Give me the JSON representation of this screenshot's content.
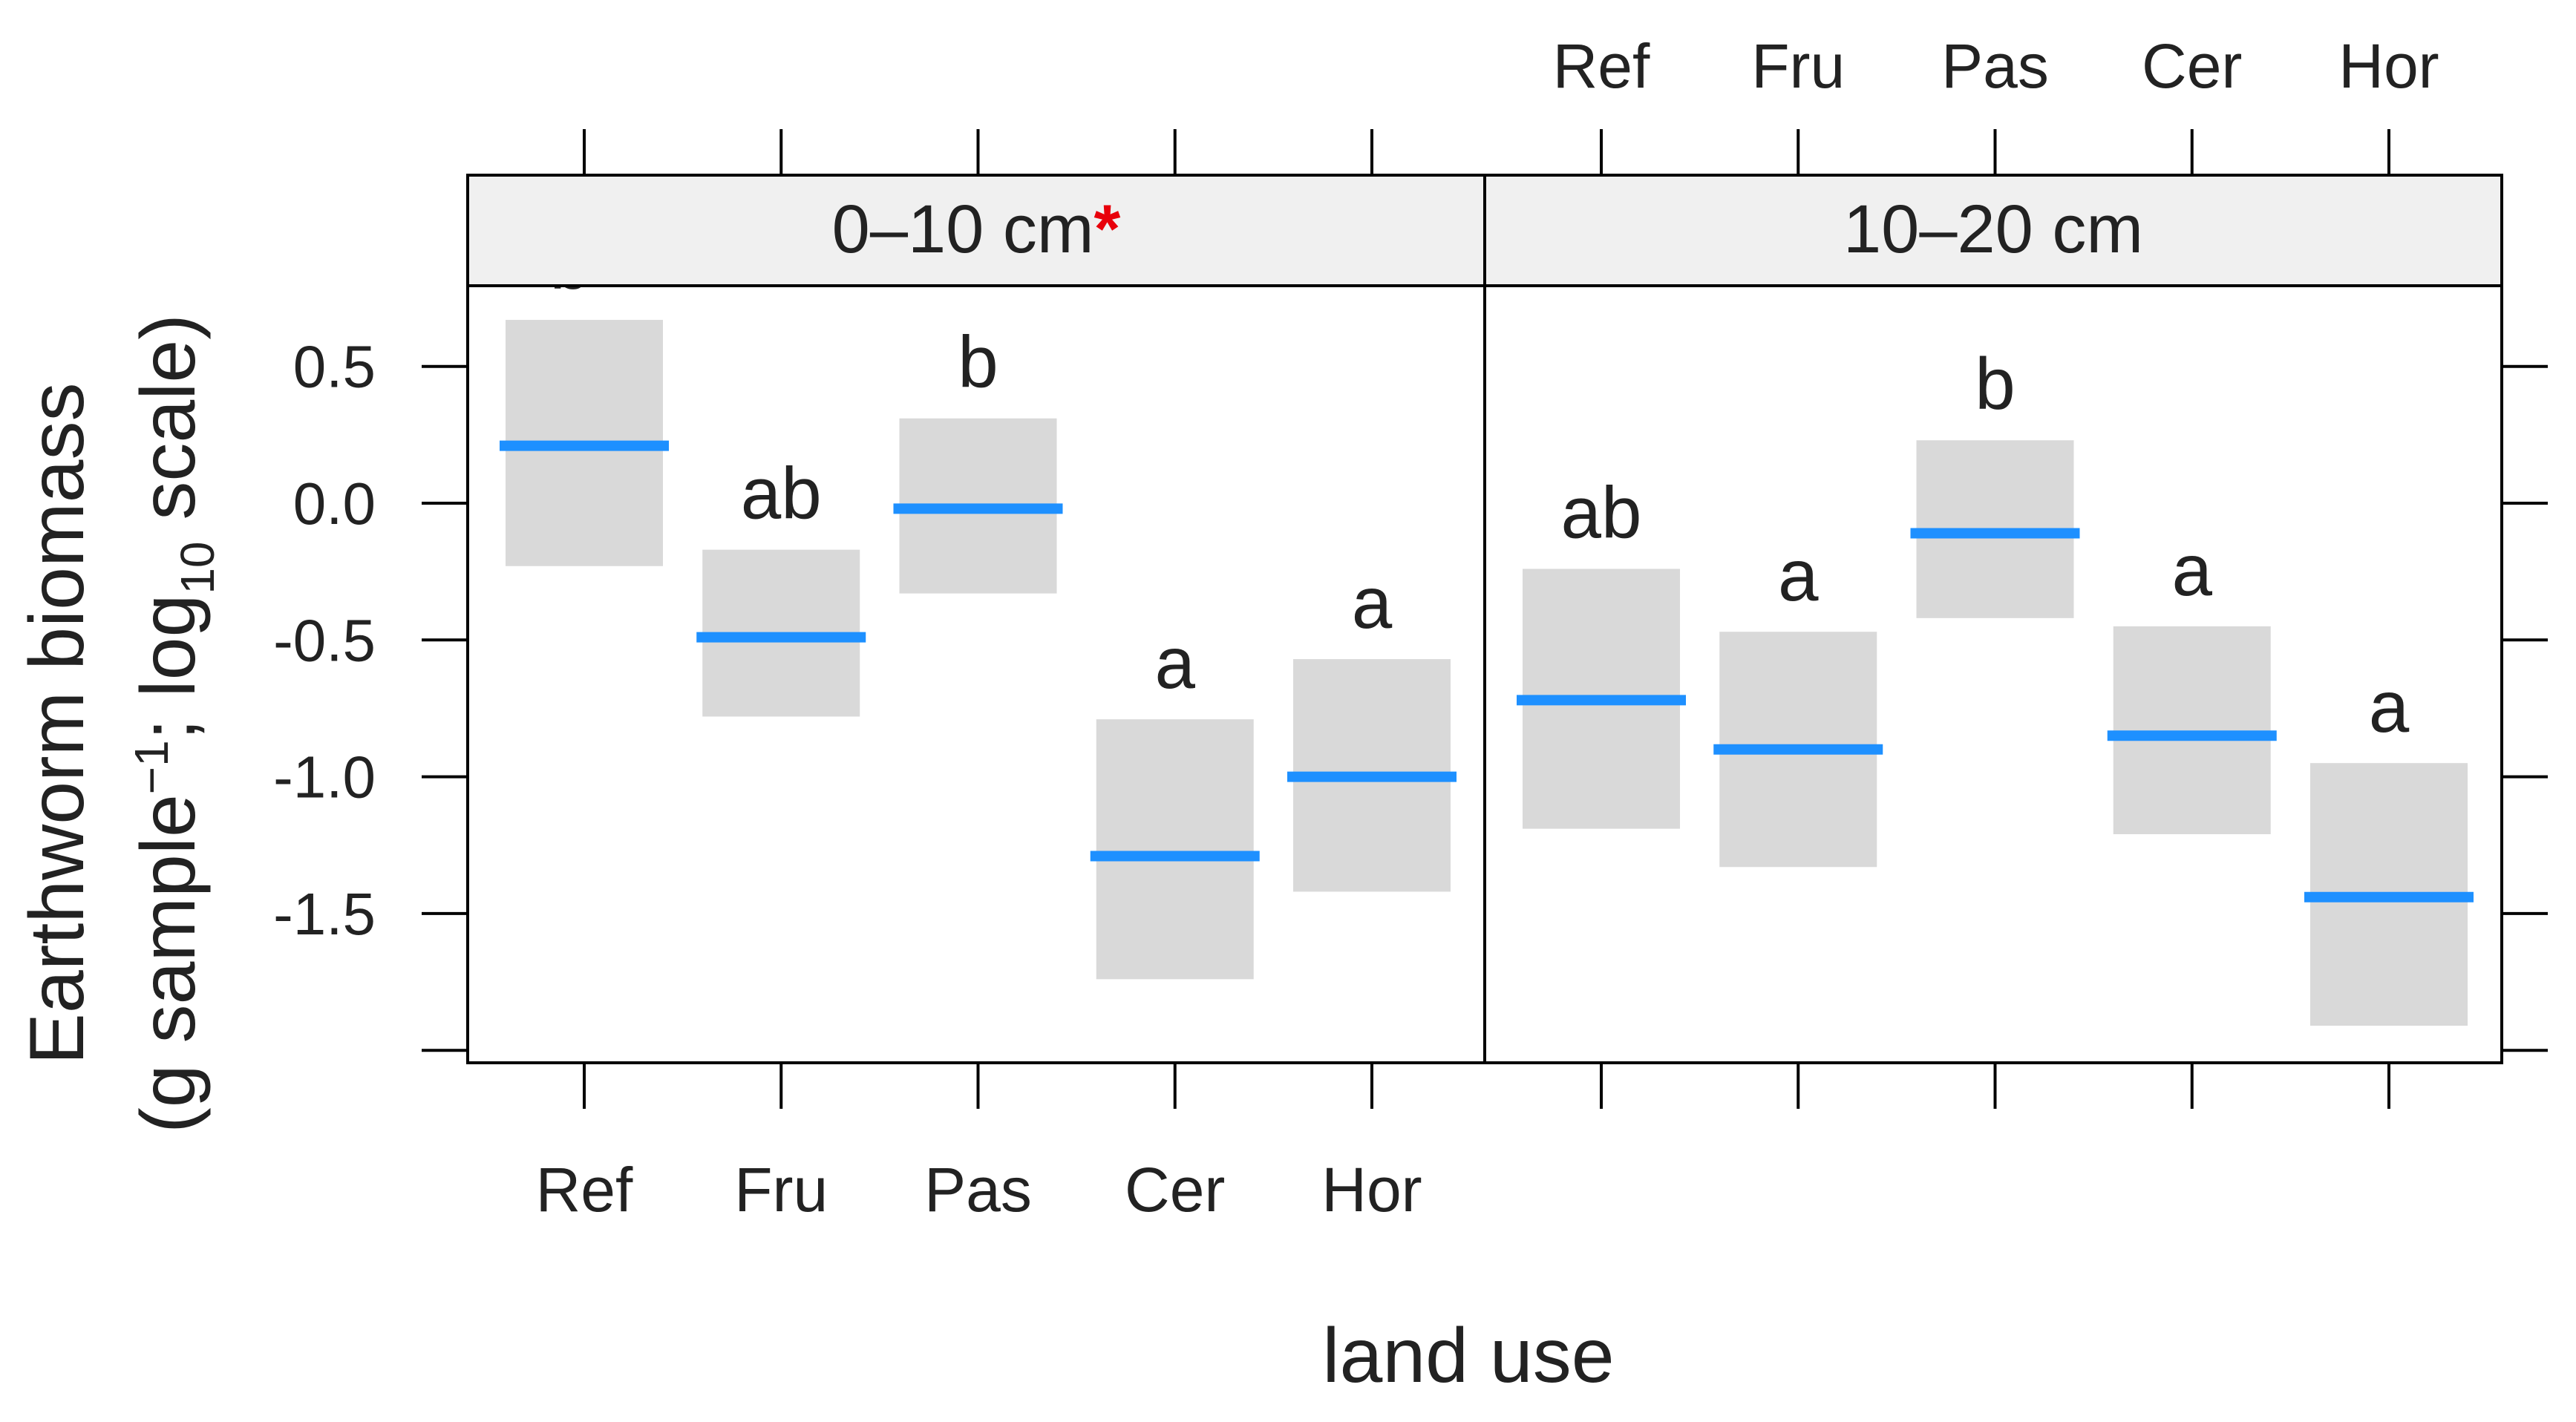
{
  "chart_data": {
    "type": "bar",
    "ylabel_line1": "Earthworm biomass",
    "ylabel_line2_prefix": "(g sample",
    "ylabel_line2_sup": "−1",
    "ylabel_line2_mid": "; log",
    "ylabel_line2_sub": "10",
    "ylabel_line2_suffix": " scale)",
    "xlabel": "land use",
    "categories": [
      "Ref",
      "Fru",
      "Pas",
      "Cer",
      "Hor"
    ],
    "yticks": [
      "0.5",
      "0.0",
      "-0.5",
      "-1.0",
      "-1.5"
    ],
    "ytick_values": [
      0.5,
      0.0,
      -0.5,
      -1.0,
      -1.5
    ],
    "ylim": [
      -2.0,
      0.8
    ],
    "panels": [
      {
        "label": "0–10 cm",
        "label_marker": "*",
        "label_marker_color": "#e8000b",
        "mean": [
          0.21,
          -0.49,
          -0.02,
          -1.29,
          -1.0
        ],
        "lower": [
          -0.23,
          -0.78,
          -0.33,
          -1.74,
          -1.42
        ],
        "upper": [
          0.67,
          -0.17,
          0.31,
          -0.79,
          -0.57
        ],
        "letters": [
          "b*",
          "ab",
          "b",
          "a",
          "a"
        ]
      },
      {
        "label": "10–20 cm",
        "label_marker": "",
        "label_marker_color": "#e8000b",
        "mean": [
          -0.72,
          -0.9,
          -0.11,
          -0.85,
          -1.44
        ],
        "lower": [
          -1.19,
          -1.33,
          -0.42,
          -1.21,
          -1.91
        ],
        "upper": [
          -0.24,
          -0.47,
          0.23,
          -0.45,
          -0.95
        ],
        "letters": [
          "ab",
          "a",
          "b",
          "a",
          "a"
        ]
      }
    ],
    "colors": {
      "mean_line": "#1e90ff",
      "ci_band": "#d9d9d9",
      "strip": "#f0f0f0",
      "marker": "#e8000b"
    },
    "grid": false,
    "legend": "none"
  }
}
